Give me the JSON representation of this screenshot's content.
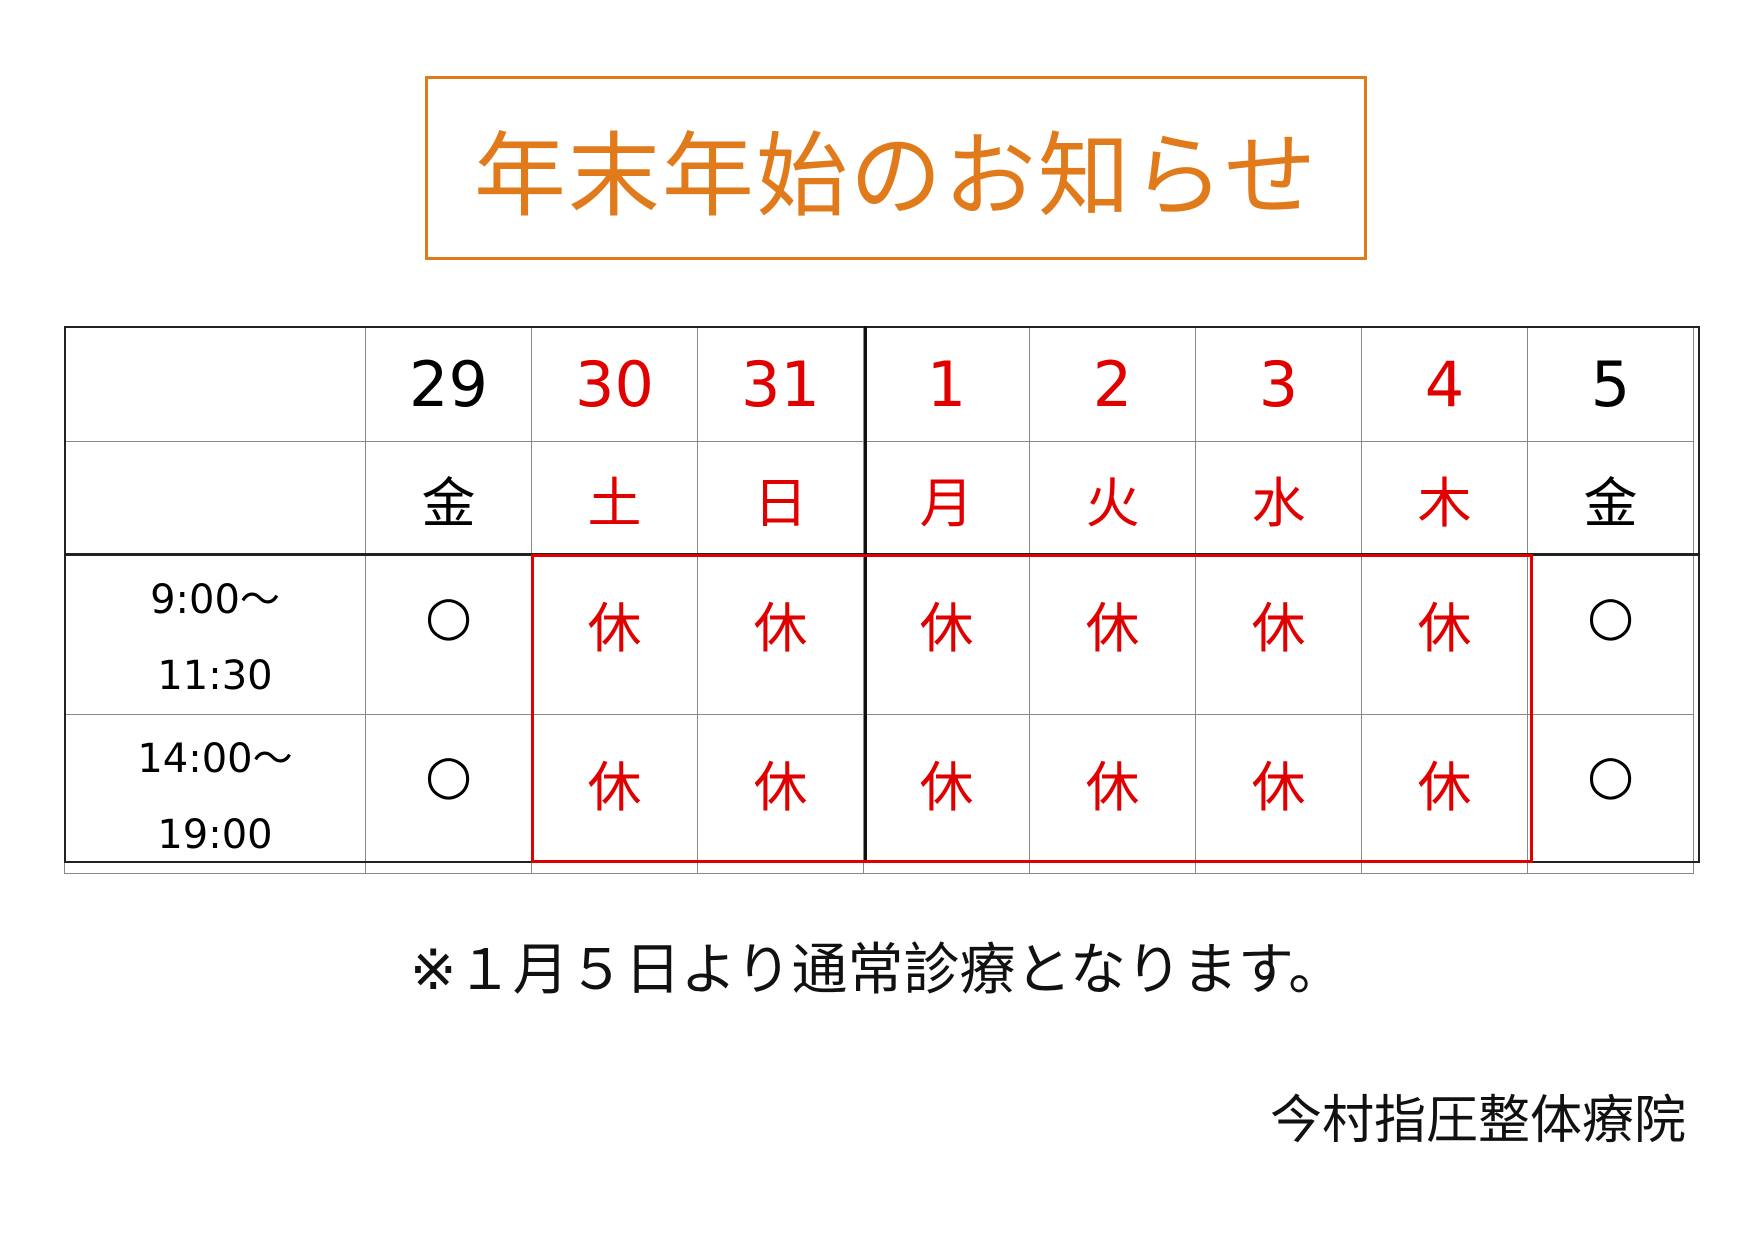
{
  "title": "年末年始のお知らせ",
  "colors": {
    "title": "#e07a1a",
    "holiday": "#e00000",
    "text": "#111111"
  },
  "days": [
    {
      "date": "29",
      "weekday": "金",
      "am": "○",
      "pm": "○",
      "closed": false
    },
    {
      "date": "30",
      "weekday": "土",
      "am": "休",
      "pm": "休",
      "closed": true
    },
    {
      "date": "31",
      "weekday": "日",
      "am": "休",
      "pm": "休",
      "closed": true
    },
    {
      "date": "1",
      "weekday": "月",
      "am": "休",
      "pm": "休",
      "closed": true
    },
    {
      "date": "2",
      "weekday": "火",
      "am": "休",
      "pm": "休",
      "closed": true
    },
    {
      "date": "3",
      "weekday": "水",
      "am": "休",
      "pm": "休",
      "closed": true
    },
    {
      "date": "4",
      "weekday": "木",
      "am": "休",
      "pm": "休",
      "closed": true
    },
    {
      "date": "5",
      "weekday": "金",
      "am": "○",
      "pm": "○",
      "closed": false
    }
  ],
  "times": {
    "am_start": "9:00～",
    "am_end": "11:30",
    "pm_start": "14:00～",
    "pm_end": "19:00"
  },
  "note": "※１月５日より通常診療となります。",
  "clinic": "今村指圧整体療院"
}
